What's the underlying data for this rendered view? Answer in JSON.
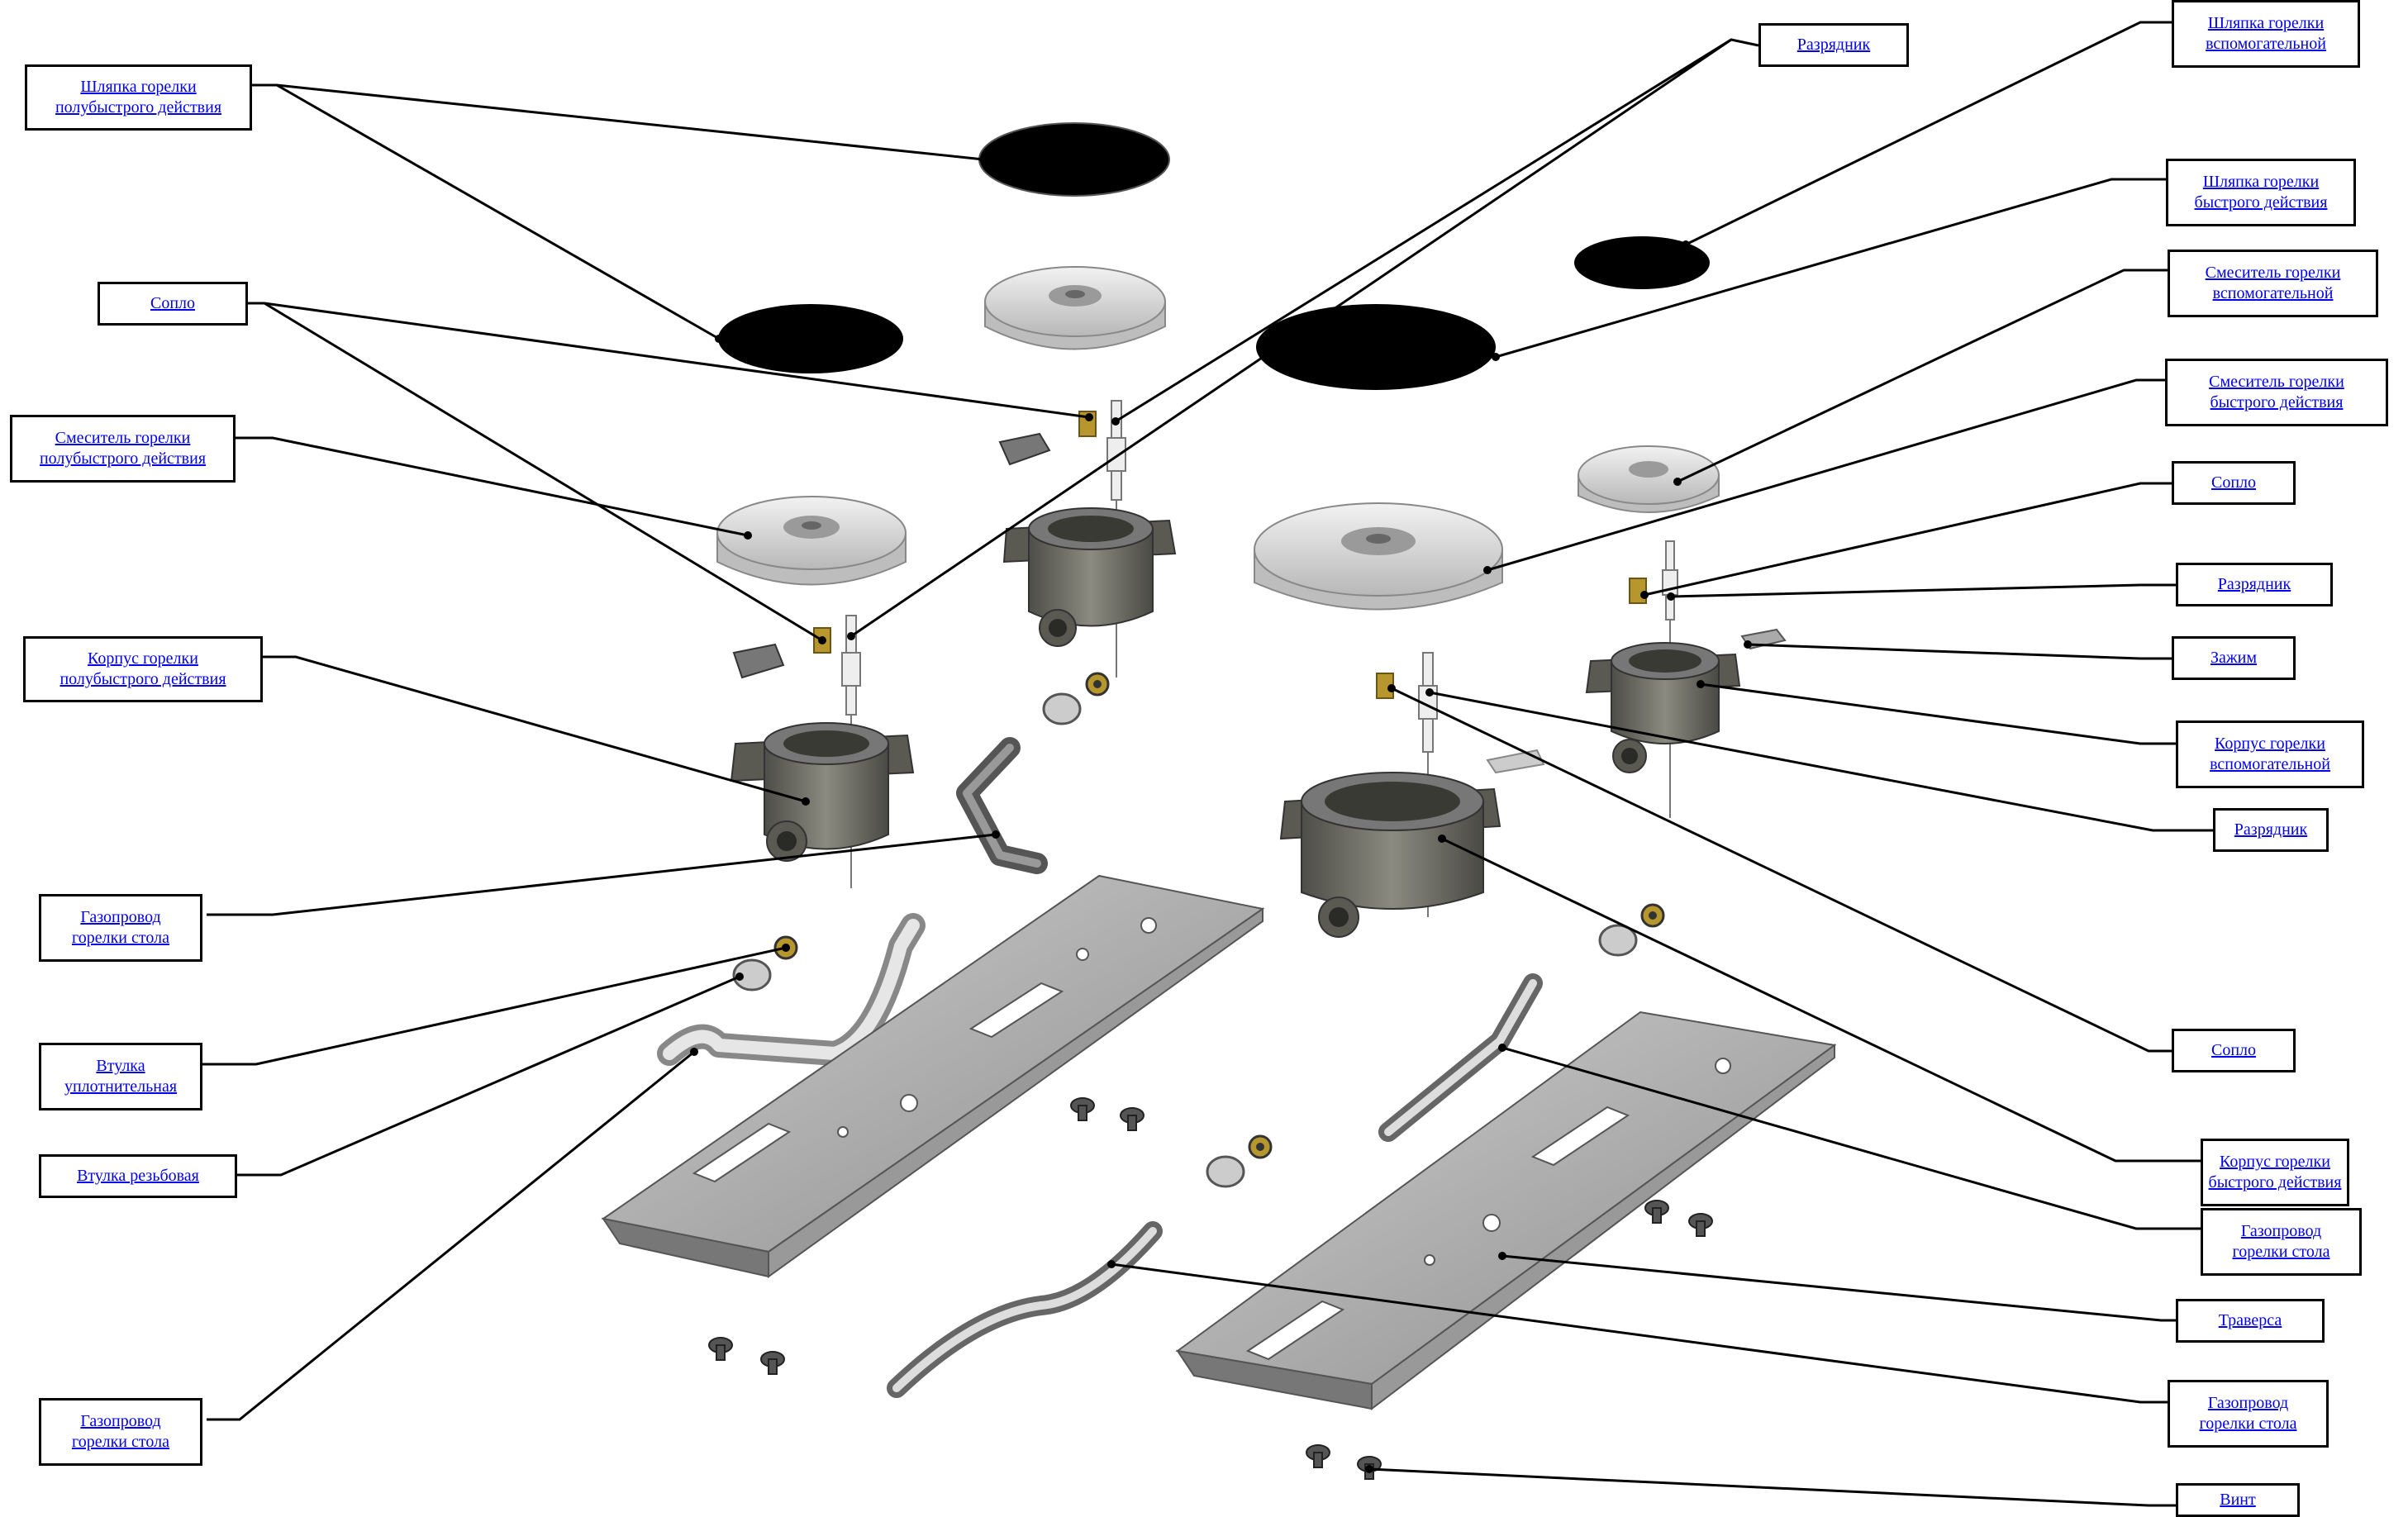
{
  "labels": {
    "cap_semi_rapid": "Шляпка горелки\nполубыстрого действия",
    "nozzle_left": "Сопло",
    "mixer_semi_rapid": "Смеситель горелки\nполубыстрого действия",
    "body_semi_rapid": "Корпус горелки\nполубыстрого действия",
    "gas_pipe_1": "Газопровод\nгорелки стола",
    "seal_sleeve": "Втулка\nуплотнительная",
    "threaded_sleeve": "Втулка резьбовая",
    "gas_pipe_2": "Газопровод\nгорелки стола",
    "igniter_top": "Разрядник",
    "cap_auxiliary": "Шляпка горелки\nвспомогательной",
    "cap_rapid": "Шляпка горелки\nбыстрого действия",
    "mixer_auxiliary": "Смеситель горелки\nвспомогательной",
    "mixer_rapid": "Смеситель горелки\nбыстрого действия",
    "nozzle_right": "Сопло",
    "igniter_right_1": "Разрядник",
    "clamp": "Зажим",
    "body_auxiliary": "Корпус горелки\nвспомогательной",
    "igniter_right_2": "Разрядник",
    "nozzle_right_2": "Сопло",
    "body_rapid": "Корпус горелки\nбыстрого действия",
    "gas_pipe_3": "Газопровод\nгорелки стола",
    "traverse": "Траверса",
    "gas_pipe_4": "Газопровод\nгорелки стола",
    "screw": "Винт"
  },
  "colors": {
    "label_text": "#0000ee",
    "leader_line": "#000000",
    "burner_cap": "#000000",
    "mixer": "#d9d9d9",
    "body": "#6e6e66",
    "traverse": "#9a9a9a",
    "nozzle_brass": "#b8962e"
  }
}
